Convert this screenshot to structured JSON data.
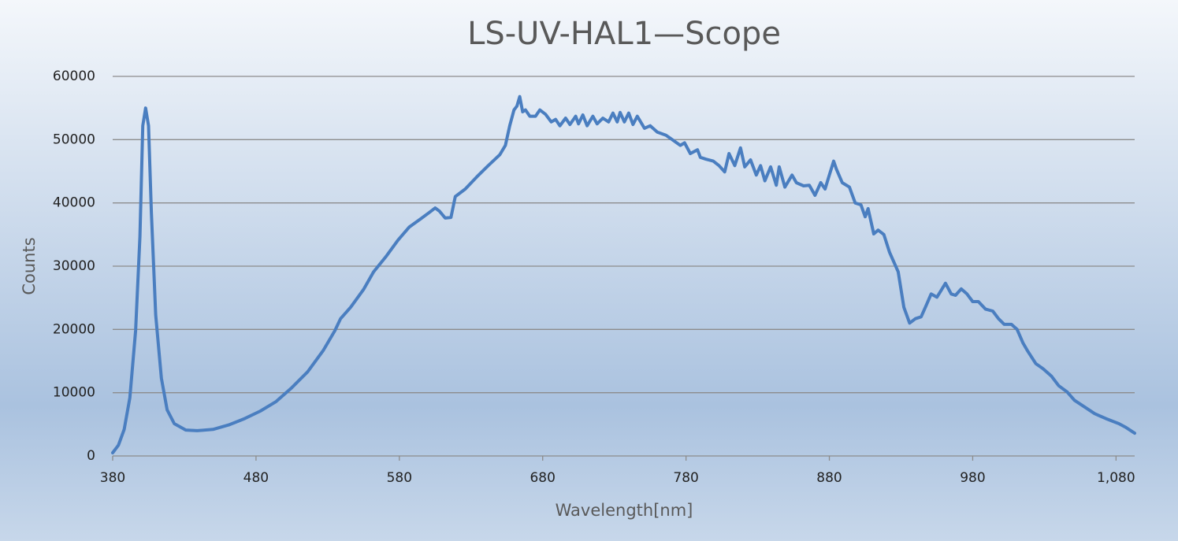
{
  "chart_data": {
    "type": "line",
    "title": "LS-UV-HAL1—Scope",
    "xlabel": "Wavelength[nm]",
    "ylabel": "Counts",
    "xlim": [
      380,
      1093
    ],
    "ylim": [
      0,
      60000
    ],
    "xticks": [
      380,
      480,
      580,
      680,
      780,
      880,
      980,
      {
        "value": 1080,
        "label": "1,080"
      }
    ],
    "yticks": [
      0,
      10000,
      20000,
      30000,
      40000,
      50000,
      60000
    ],
    "grid": true,
    "series": [
      {
        "color": "#4a7ec0",
        "x": [
          380,
          384,
          388,
          392,
          396,
          399,
          401,
          403,
          405,
          407,
          410,
          414,
          418,
          423,
          431,
          439,
          450,
          461,
          472,
          483,
          494,
          505,
          516,
          527,
          535,
          539,
          546,
          555,
          562,
          571,
          579,
          587,
          595,
          601,
          605,
          608,
          612,
          616,
          619,
          626,
          634,
          642,
          650,
          654,
          657,
          660,
          662,
          664,
          666,
          668,
          671,
          675,
          678,
          682,
          686,
          689,
          692,
          696,
          699,
          703,
          705,
          708,
          711,
          715,
          718,
          722,
          726,
          729,
          732,
          734,
          737,
          740,
          743,
          746,
          751,
          755,
          760,
          766,
          771,
          776,
          779,
          783,
          788,
          790,
          794,
          799,
          803,
          807,
          810,
          814,
          818,
          821,
          825,
          829,
          832,
          835,
          839,
          843,
          845,
          849,
          854,
          857,
          862,
          866,
          870,
          874,
          877,
          880,
          883,
          885,
          889,
          894,
          898,
          902,
          905,
          907,
          911,
          914,
          918,
          922,
          928,
          932,
          936,
          940,
          944,
          947,
          951,
          955,
          957,
          961,
          965,
          968,
          972,
          976,
          980,
          984,
          989,
          994,
          998,
          1002,
          1007,
          1011,
          1015,
          1018,
          1024,
          1029,
          1035,
          1040,
          1046,
          1051,
          1059,
          1065,
          1073,
          1082,
          1087,
          1093
        ],
        "values": [
          500,
          1700,
          4200,
          9200,
          19800,
          34700,
          52200,
          55000,
          52200,
          38500,
          22300,
          12300,
          7300,
          5100,
          4100,
          4000,
          4200,
          4900,
          5900,
          7100,
          8600,
          10800,
          13300,
          16700,
          19800,
          21700,
          23500,
          26300,
          29100,
          31600,
          34100,
          36200,
          37500,
          38500,
          39200,
          38700,
          37600,
          37700,
          41000,
          42200,
          44100,
          45900,
          47600,
          49100,
          52200,
          54700,
          55300,
          56800,
          54400,
          54700,
          53700,
          53700,
          54700,
          54000,
          52800,
          53200,
          52200,
          53400,
          52400,
          53700,
          52500,
          53900,
          52200,
          53700,
          52500,
          53400,
          52800,
          54200,
          52800,
          54300,
          52800,
          54200,
          52400,
          53700,
          51800,
          52200,
          51200,
          50700,
          49900,
          49100,
          49500,
          47800,
          48400,
          47200,
          46900,
          46600,
          45900,
          44900,
          47800,
          45900,
          48700,
          45700,
          46800,
          44400,
          45900,
          43500,
          45700,
          42800,
          45700,
          42500,
          44400,
          43200,
          42700,
          42800,
          41200,
          43200,
          42200,
          44400,
          46600,
          45300,
          43200,
          42500,
          40000,
          39700,
          37800,
          39100,
          35100,
          35700,
          35000,
          32200,
          29100,
          23500,
          21000,
          21700,
          22000,
          23500,
          25600,
          25100,
          25800,
          27300,
          25600,
          25400,
          26400,
          25600,
          24400,
          24400,
          23200,
          22900,
          21700,
          20800,
          20800,
          20000,
          17900,
          16700,
          14600,
          13800,
          12600,
          11100,
          10100,
          8800,
          7600,
          6700,
          5900,
          5100,
          4500,
          3600
        ]
      }
    ]
  }
}
